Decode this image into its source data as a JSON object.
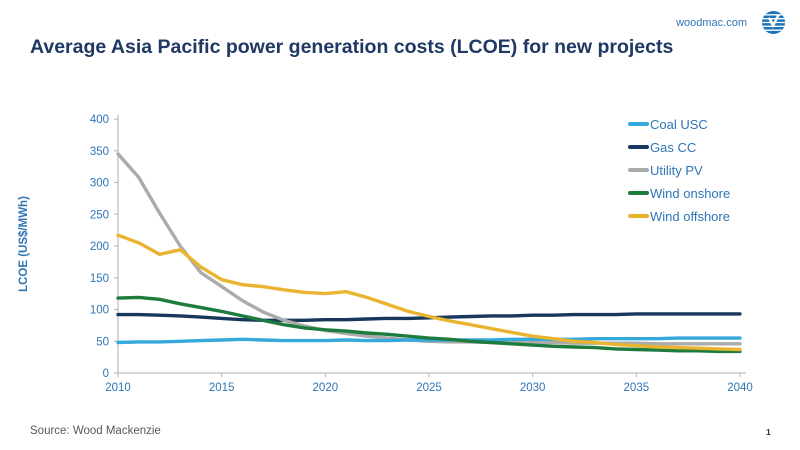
{
  "page": {
    "title": "Average Asia Pacific power generation costs (LCOE) for new projects",
    "url_label": "woodmac.com",
    "source": "Source: Wood Mackenzie",
    "page_number": "1"
  },
  "colors": {
    "title_text": "#1f3864",
    "axis_text": "#2e75b6",
    "axis_line": "#bfbfbf",
    "source_text": "#595959",
    "logo_blue": "#1b75bb"
  },
  "chart_data": {
    "type": "line",
    "title": "Average Asia Pacific power generation costs (LCOE) for new projects",
    "xlabel": "",
    "ylabel": "LCOE (US$/MWh)",
    "xlim": [
      2010,
      2040
    ],
    "ylim": [
      0,
      400
    ],
    "xticks": [
      2010,
      2015,
      2020,
      2025,
      2030,
      2035,
      2040
    ],
    "yticks": [
      0,
      50,
      100,
      150,
      200,
      250,
      300,
      350,
      400
    ],
    "grid": false,
    "legend_position": "top-right",
    "x": [
      2010,
      2011,
      2012,
      2013,
      2014,
      2015,
      2016,
      2017,
      2018,
      2019,
      2020,
      2021,
      2022,
      2023,
      2024,
      2025,
      2026,
      2027,
      2028,
      2029,
      2030,
      2031,
      2032,
      2033,
      2034,
      2035,
      2036,
      2037,
      2038,
      2039,
      2040
    ],
    "series": [
      {
        "name": "Coal USC",
        "color": "#35a8dc",
        "values": [
          48,
          49,
          49,
          50,
          51,
          52,
          53,
          52,
          51,
          51,
          51,
          52,
          51,
          51,
          52,
          52,
          52,
          52,
          52,
          53,
          53,
          53,
          53,
          54,
          54,
          54,
          54,
          55,
          55,
          55,
          55
        ]
      },
      {
        "name": "Gas CC",
        "color": "#17375d",
        "values": [
          92,
          92,
          91,
          90,
          88,
          86,
          84,
          83,
          83,
          83,
          84,
          84,
          85,
          86,
          86,
          87,
          88,
          89,
          90,
          90,
          91,
          91,
          92,
          92,
          92,
          93,
          93,
          93,
          93,
          93,
          93
        ]
      },
      {
        "name": "Utility PV",
        "color": "#ababab",
        "values": [
          345,
          308,
          252,
          200,
          158,
          136,
          114,
          96,
          83,
          74,
          67,
          62,
          58,
          55,
          52,
          50,
          49,
          49,
          48,
          48,
          48,
          48,
          47,
          47,
          47,
          47,
          46,
          46,
          46,
          46,
          46
        ]
      },
      {
        "name": "Wind onshore",
        "color": "#1e7b3e",
        "values": [
          118,
          119,
          116,
          109,
          103,
          97,
          90,
          83,
          76,
          71,
          68,
          66,
          63,
          61,
          58,
          55,
          53,
          50,
          48,
          46,
          44,
          42,
          41,
          40,
          38,
          37,
          36,
          35,
          35,
          34,
          34
        ]
      },
      {
        "name": "Wind offshore",
        "color": "#e9b530",
        "values": [
          217,
          205,
          187,
          194,
          167,
          147,
          139,
          136,
          131,
          127,
          125,
          128,
          119,
          108,
          97,
          89,
          82,
          76,
          70,
          64,
          58,
          54,
          50,
          48,
          45,
          43,
          41,
          40,
          39,
          38,
          37
        ]
      }
    ],
    "draw_order": [
      "Gas CC",
      "Utility PV",
      "Coal USC",
      "Wind onshore",
      "Wind offshore"
    ]
  }
}
